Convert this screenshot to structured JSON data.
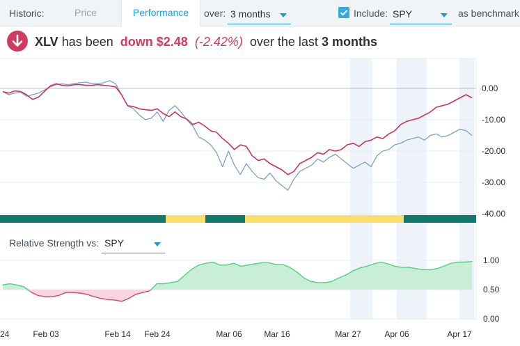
{
  "topbar": {
    "historic_label": "Historic:",
    "tab_price": "Price",
    "tab_performance": "Performance",
    "over_label": "over:",
    "period_value": "3 months",
    "include_label": "Include:",
    "benchmark_value": "SPY",
    "benchmark_suffix": "as benchmark",
    "include_checked": true
  },
  "headline": {
    "ticker": "XLV",
    "has_been": "has been",
    "change": "down $2.48",
    "pct": "(-2.42%)",
    "over_the_last": "over the last",
    "period": "3 months"
  },
  "relative_strength": {
    "label": "Relative Strength vs:",
    "value": "SPY"
  },
  "colors": {
    "accent": "#1a9bd7",
    "xlv_line": "#c9335c",
    "spy_line": "#7ba0c9",
    "band_green": "#0f7a6b",
    "band_yellow": "#f9de6b",
    "rs_positive_fill": "#c8efd6",
    "rs_positive_line": "#4fcf86",
    "rs_negative_fill": "#f9d6dd",
    "rs_negative_line": "#d04a6c",
    "down_icon": "#d03b5f"
  },
  "chart_data": [
    {
      "type": "line",
      "series": [
        {
          "name": "XLV",
          "x": [
            0,
            1,
            2,
            3,
            4,
            5,
            6,
            7,
            8,
            9,
            10,
            11,
            12,
            13,
            14,
            15,
            16,
            17,
            18,
            19,
            20,
            21,
            22,
            23,
            24,
            25,
            26,
            27,
            28,
            29,
            30,
            31,
            32,
            33,
            34,
            35,
            36,
            37,
            38,
            39,
            40,
            41,
            42,
            43,
            44,
            45,
            46,
            47,
            48,
            49,
            50,
            51,
            52,
            53,
            54,
            55,
            56,
            57,
            58,
            59,
            60,
            61,
            62,
            63,
            64,
            65,
            66,
            67,
            68,
            69,
            70,
            71,
            72,
            73,
            74,
            75,
            76,
            77,
            78,
            79
          ],
          "values": [
            -1.0,
            -1.5,
            -0.8,
            -1.0,
            -2.0,
            -3.5,
            -2.8,
            -1.0,
            0.8,
            1.5,
            1.0,
            0.8,
            1.2,
            1.2,
            1.0,
            1.0,
            1.2,
            1.0,
            0.8,
            0.5,
            -2.0,
            -5.5,
            -5.8,
            -6.5,
            -6.8,
            -7.0,
            -6.5,
            -8.0,
            -9.0,
            -7.5,
            -9.0,
            -9.8,
            -11.5,
            -10.8,
            -12.0,
            -13.5,
            -14.0,
            -16.0,
            -17.5,
            -19.5,
            -18.0,
            -18.5,
            -21.5,
            -23.0,
            -22.5,
            -24.0,
            -25.0,
            -26.0,
            -27.5,
            -26.5,
            -24.0,
            -23.0,
            -22.0,
            -20.5,
            -21.0,
            -19.5,
            -20.0,
            -19.5,
            -18.0,
            -17.5,
            -18.5,
            -17.0,
            -16.5,
            -15.5,
            -16.0,
            -14.5,
            -13.5,
            -11.5,
            -10.5,
            -10.0,
            -9.5,
            -8.5,
            -7.5,
            -6.0,
            -5.5,
            -5.0,
            -4.0,
            -3.0,
            -2.0,
            -3.0
          ]
        },
        {
          "name": "SPY",
          "x": [
            0,
            1,
            2,
            3,
            4,
            5,
            6,
            7,
            8,
            9,
            10,
            11,
            12,
            13,
            14,
            15,
            16,
            17,
            18,
            19,
            20,
            21,
            22,
            23,
            24,
            25,
            26,
            27,
            28,
            29,
            30,
            31,
            32,
            33,
            34,
            35,
            36,
            37,
            38,
            39,
            40,
            41,
            42,
            43,
            44,
            45,
            46,
            47,
            48,
            49,
            50,
            51,
            52,
            53,
            54,
            55,
            56,
            57,
            58,
            59,
            60,
            61,
            62,
            63,
            64,
            65,
            66,
            67,
            68,
            69,
            70,
            71,
            72,
            73,
            74,
            75,
            76,
            77,
            78,
            79
          ],
          "values": [
            -1.0,
            -2.0,
            -1.5,
            -1.2,
            -2.5,
            -2.0,
            -1.5,
            -0.5,
            0.5,
            1.2,
            1.5,
            1.2,
            1.5,
            1.8,
            2.0,
            1.5,
            1.5,
            1.8,
            2.5,
            1.5,
            -2.0,
            -5.5,
            -6.5,
            -8.5,
            -10.0,
            -9.5,
            -7.5,
            -10.5,
            -7.0,
            -5.5,
            -7.5,
            -10.0,
            -12.0,
            -15.5,
            -16.5,
            -18.0,
            -20.5,
            -25.0,
            -20.0,
            -24.5,
            -27.5,
            -24.0,
            -26.5,
            -28.5,
            -29.0,
            -27.0,
            -29.5,
            -31.0,
            -32.5,
            -29.0,
            -26.5,
            -25.5,
            -24.5,
            -22.5,
            -23.5,
            -22.0,
            -21.0,
            -22.5,
            -24.0,
            -25.5,
            -24.5,
            -23.5,
            -25.0,
            -21.5,
            -20.0,
            -19.5,
            -18.0,
            -17.5,
            -16.5,
            -16.0,
            -15.5,
            -16.5,
            -15.0,
            -14.5,
            -15.5,
            -15.0,
            -14.0,
            -13.0,
            -13.5,
            -15.0
          ]
        }
      ],
      "y_ticks": [
        "0.00",
        "-10.00",
        "-20.00",
        "-30.00",
        "-40.00"
      ],
      "ylim": [
        -40,
        6
      ]
    },
    {
      "type": "area",
      "title": "Relative Strength vs: SPY",
      "x_ticks": [
        "24",
        "Feb 03",
        "Feb 14",
        "Feb 24",
        "Mar 06",
        "Mar 16",
        "Mar 27",
        "Apr 06",
        "Apr 17"
      ],
      "y_ticks": [
        "1.00",
        "0.50",
        "0.00"
      ],
      "baseline": 0.5,
      "ylim": [
        0.0,
        1.0
      ],
      "series": [
        {
          "values": [
            0.58,
            0.6,
            0.58,
            0.55,
            0.46,
            0.4,
            0.38,
            0.38,
            0.4,
            0.45,
            0.45,
            0.44,
            0.42,
            0.38,
            0.35,
            0.33,
            0.32,
            0.3,
            0.35,
            0.42,
            0.45,
            0.48,
            0.6,
            0.6,
            0.62,
            0.64,
            0.75,
            0.85,
            0.92,
            0.95,
            0.97,
            0.92,
            0.92,
            0.95,
            0.9,
            0.92,
            0.94,
            0.96,
            0.96,
            0.93,
            0.93,
            0.88,
            0.8,
            0.7,
            0.64,
            0.62,
            0.62,
            0.64,
            0.7,
            0.75,
            0.82,
            0.87,
            0.9,
            0.94,
            0.97,
            0.94,
            0.9,
            0.88,
            0.88,
            0.86,
            0.84,
            0.84,
            0.86,
            0.9,
            0.95,
            0.97,
            0.97,
            0.98
          ]
        }
      ]
    }
  ]
}
